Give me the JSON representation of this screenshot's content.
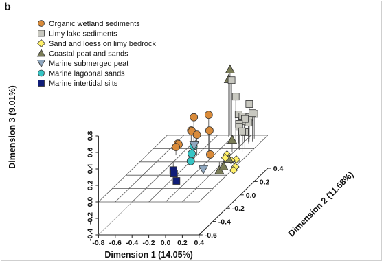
{
  "panel_label": "b",
  "chart_data": {
    "type": "scatter3d",
    "xlabel": "Dimension 1 (14.05%)",
    "ylabel": "Dimension 2 (11.68%)",
    "zlabel": "Dimension 3 (9.01%)",
    "xlim": [
      -0.8,
      0.4
    ],
    "ylim": [
      -0.6,
      0.4
    ],
    "zlim": [
      -0.4,
      0.8
    ],
    "x_ticks": [
      "-0.8",
      "-0.6",
      "-0.4",
      "-0.2",
      "0.0",
      "0.2",
      "0.4"
    ],
    "y_ticks": [
      "-0.6",
      "-0.4",
      "-0.2",
      "0.0",
      "0.2",
      "0.4"
    ],
    "z_ticks": [
      "-0.4",
      "-0.2",
      "0.0",
      "0.2",
      "0.4",
      "0.6",
      "0.8"
    ],
    "legend_position": "top-left",
    "series": [
      {
        "name": "Organic wetland sediments",
        "marker": "circle",
        "color": "#d98b3a",
        "points": [
          [
            -0.55,
            0.25,
            0.02
          ],
          [
            -0.5,
            0.2,
            0.05
          ],
          [
            -0.45,
            0.1,
            0.1
          ],
          [
            -0.4,
            0.3,
            0.3
          ],
          [
            -0.35,
            0.2,
            0.22
          ],
          [
            -0.3,
            0.15,
            0.25
          ],
          [
            -0.2,
            0.1,
            0.25
          ],
          [
            -0.1,
            0.15,
            0.45
          ],
          [
            -0.05,
            0.1,
            0.3
          ],
          [
            0.0,
            0.05,
            0.05
          ]
        ]
      },
      {
        "name": "Limy lake sediments",
        "marker": "square",
        "color": "#c8c8c0",
        "points": [
          [
            0.05,
            0.3,
            0.75
          ],
          [
            0.1,
            0.3,
            0.55
          ],
          [
            0.15,
            0.28,
            0.35
          ],
          [
            0.18,
            0.3,
            0.3
          ],
          [
            0.2,
            0.3,
            0.25
          ],
          [
            0.22,
            0.25,
            0.35
          ],
          [
            0.25,
            0.3,
            0.25
          ],
          [
            0.22,
            0.35,
            0.42
          ],
          [
            0.25,
            0.25,
            0.32
          ],
          [
            0.22,
            0.2,
            0.3
          ],
          [
            0.24,
            0.18,
            0.28
          ],
          [
            0.28,
            0.35,
            0.3
          ],
          [
            0.26,
            0.3,
            0.3
          ],
          [
            0.3,
            0.3,
            0.35
          ],
          [
            0.27,
            0.28,
            0.25
          ],
          [
            0.29,
            0.2,
            0.2
          ],
          [
            0.3,
            0.15,
            0.25
          ]
        ]
      },
      {
        "name": "Sand and loess on limy bedrock",
        "marker": "diamond",
        "color": "#fff06a",
        "points": [
          [
            0.2,
            0.05,
            0.05
          ],
          [
            0.22,
            0.0,
            0.05
          ],
          [
            0.25,
            0.05,
            -0.02
          ],
          [
            0.27,
            0.1,
            -0.05
          ],
          [
            0.3,
            0.05,
            -0.1
          ],
          [
            0.32,
            0.0,
            -0.1
          ]
        ]
      },
      {
        "name": "Coastal peat and sands",
        "marker": "triangle-up",
        "color": "#7b7d58",
        "points": [
          [
            -0.05,
            0.4,
            0.8
          ],
          [
            -0.05,
            0.38,
            0.7
          ],
          [
            0.15,
            0.0,
            -0.1
          ],
          [
            0.18,
            0.15,
            0.15
          ],
          [
            0.2,
            0.0,
            -0.05
          ],
          [
            0.22,
            0.05,
            0.0
          ]
        ]
      },
      {
        "name": "Marine submerged peat",
        "marker": "triangle-down",
        "color": "#8fa7bf",
        "points": [
          [
            -0.15,
            0.0,
            0.2
          ],
          [
            0.0,
            -0.05,
            -0.05
          ]
        ]
      },
      {
        "name": "Marine lagoonal sands",
        "marker": "circle",
        "color": "#37c5c5",
        "points": [
          [
            -0.2,
            0.05,
            0.15
          ],
          [
            -0.18,
            0.0,
            0.1
          ],
          [
            -0.15,
            -0.05,
            0.05
          ]
        ]
      },
      {
        "name": "Marine intertidal silts",
        "marker": "square",
        "color": "#101d78",
        "points": [
          [
            -0.4,
            0.0,
            -0.1
          ],
          [
            -0.35,
            -0.05,
            -0.1
          ],
          [
            -0.28,
            -0.1,
            -0.15
          ]
        ]
      }
    ]
  }
}
